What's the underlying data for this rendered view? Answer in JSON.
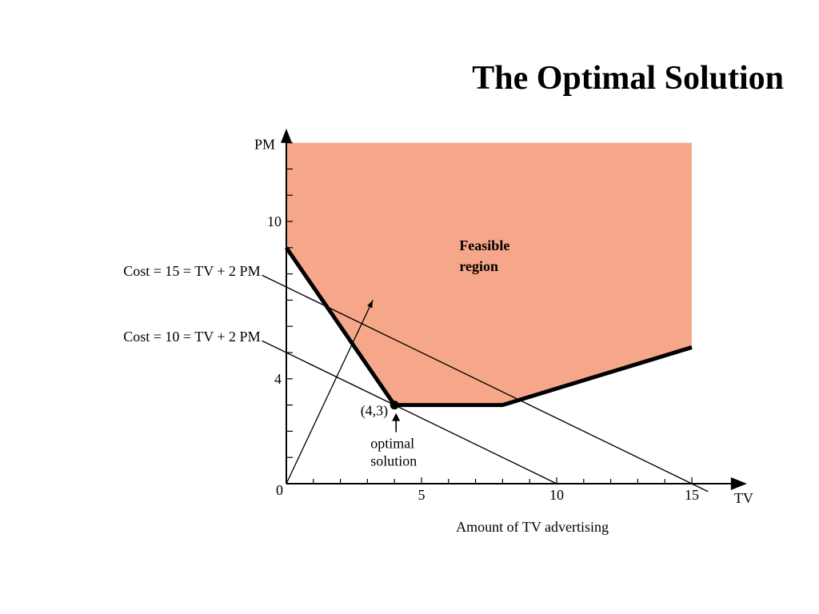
{
  "title": "The Optimal Solution",
  "colors": {
    "feasible_fill": "#F6A78A",
    "axis": "#000000",
    "text": "#000000",
    "background": "#FFFFFF"
  },
  "diagram": {
    "y_axis_label": "PM",
    "x_axis_label": "TV",
    "x_axis_title": "Amount of TV advertising",
    "origin_label": "0",
    "x_tick_labels": [
      {
        "value": 5,
        "label": "5"
      },
      {
        "value": 10,
        "label": "10"
      },
      {
        "value": 15,
        "label": "15"
      }
    ],
    "y_tick_labels": [
      {
        "value": 4,
        "label": "4"
      },
      {
        "value": 10,
        "label": "10"
      }
    ],
    "x_range": [
      0,
      15
    ],
    "y_range": [
      0,
      13
    ],
    "feasible_region_label": [
      "Feasible",
      "region"
    ],
    "boundary_vertices": [
      [
        0,
        9
      ],
      [
        4,
        3
      ],
      [
        8,
        3
      ],
      [
        15,
        5.2
      ]
    ],
    "iso_cost_lines": [
      {
        "label": "Cost = 15 = TV + 2 PM",
        "cost": 15
      },
      {
        "label": "Cost = 10 = TV + 2 PM",
        "cost": 10
      }
    ],
    "optimal_point": {
      "tv": 4,
      "pm": 3,
      "label": "(4,3)"
    },
    "optimal_caption": [
      "optimal",
      "solution"
    ]
  }
}
